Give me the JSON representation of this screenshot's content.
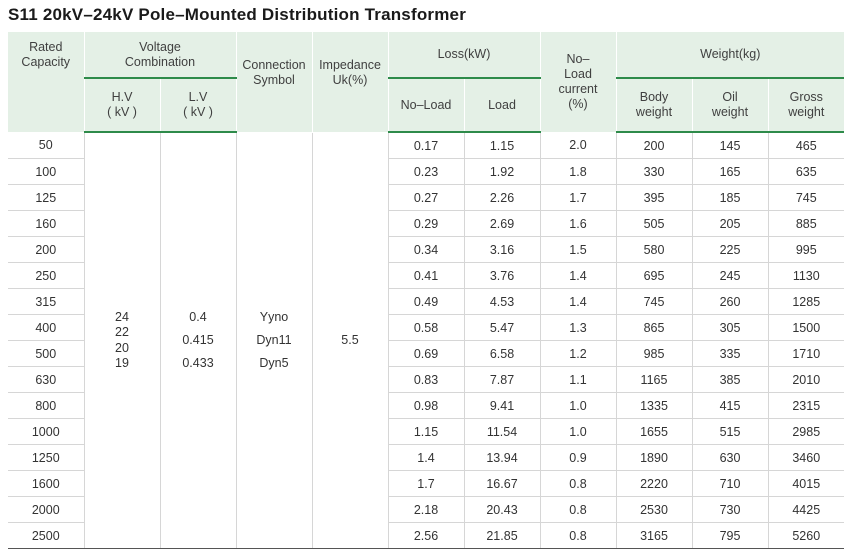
{
  "title": "S11  20kV–24kV  Pole–Mounted Distribution Transformer",
  "headers": {
    "rated_capacity": [
      "Rated",
      "Capacity"
    ],
    "voltage_combination": [
      "Voltage",
      "Combination"
    ],
    "hv": [
      "H.V",
      "( kV )"
    ],
    "lv": [
      "L.V",
      "( kV )"
    ],
    "connection_symbol": [
      "Connection",
      "Symbol"
    ],
    "impedance": [
      "Impedance",
      "Uk(%)"
    ],
    "loss": "Loss(kW)",
    "no_load": "No–Load",
    "load": "Load",
    "no_load_current": [
      "No–",
      "Load",
      "current",
      "(%)"
    ],
    "weight": "Weight(kg)",
    "body_weight": [
      "Body",
      "weight"
    ],
    "oil_weight": [
      "Oil",
      "weight"
    ],
    "gross_weight": [
      "Gross",
      "weight"
    ]
  },
  "merged": {
    "hv_values": [
      "24",
      "22",
      "20",
      "19"
    ],
    "lv_values": [
      "0.4",
      "0.415",
      "0.433"
    ],
    "connection_values": [
      "Yyno",
      "Dyn11",
      "Dyn5"
    ],
    "impedance_value": "5.5"
  },
  "rows": [
    [
      "50",
      "0.17",
      "1.15",
      "2.0",
      "200",
      "145",
      "465"
    ],
    [
      "100",
      "0.23",
      "1.92",
      "1.8",
      "330",
      "165",
      "635"
    ],
    [
      "125",
      "0.27",
      "2.26",
      "1.7",
      "395",
      "185",
      "745"
    ],
    [
      "160",
      "0.29",
      "2.69",
      "1.6",
      "505",
      "205",
      "885"
    ],
    [
      "200",
      "0.34",
      "3.16",
      "1.5",
      "580",
      "225",
      "995"
    ],
    [
      "250",
      "0.41",
      "3.76",
      "1.4",
      "695",
      "245",
      "1130"
    ],
    [
      "315",
      "0.49",
      "4.53",
      "1.4",
      "745",
      "260",
      "1285"
    ],
    [
      "400",
      "0.58",
      "5.47",
      "1.3",
      "865",
      "305",
      "1500"
    ],
    [
      "500",
      "0.69",
      "6.58",
      "1.2",
      "985",
      "335",
      "1710"
    ],
    [
      "630",
      "0.83",
      "7.87",
      "1.1",
      "1165",
      "385",
      "2010"
    ],
    [
      "800",
      "0.98",
      "9.41",
      "1.0",
      "1335",
      "415",
      "2315"
    ],
    [
      "1000",
      "1.15",
      "11.54",
      "1.0",
      "1655",
      "515",
      "2985"
    ],
    [
      "1250",
      "1.4",
      "13.94",
      "0.9",
      "1890",
      "630",
      "3460"
    ],
    [
      "1600",
      "1.7",
      "16.67",
      "0.8",
      "2220",
      "710",
      "4015"
    ],
    [
      "2000",
      "2.18",
      "20.43",
      "0.8",
      "2530",
      "730",
      "4425"
    ],
    [
      "2500",
      "2.56",
      "21.85",
      "0.8",
      "3165",
      "795",
      "5260"
    ]
  ]
}
